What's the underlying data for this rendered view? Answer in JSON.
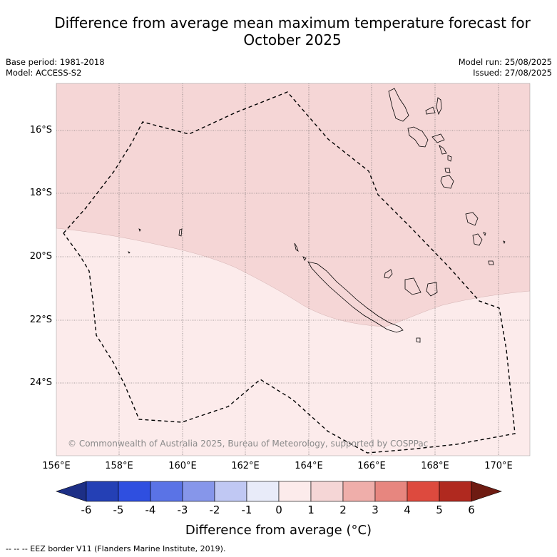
{
  "title_line1": "Difference from average mean maximum temperature forecast for",
  "title_line2": "October 2025",
  "base_period": "Base period: 1981-2018",
  "model": "Model: ACCESS-S2",
  "model_run": "Model run: 25/08/2025",
  "issued": "Issued: 27/08/2025",
  "map": {
    "lat_labels": [
      "16°S",
      "18°S",
      "20°S",
      "22°S",
      "24°S"
    ],
    "lon_labels": [
      "156°E",
      "158°E",
      "160°E",
      "162°E",
      "164°E",
      "166°E",
      "168°E",
      "170°E"
    ],
    "anomaly_categories": [
      {
        "range": "0 to 1 °C",
        "color": "#fcebeb"
      },
      {
        "range": "1 to 2 °C",
        "color": "#f5d6d6"
      }
    ],
    "copyright": "© Commonwealth of Australia 2025, Bureau of Meteorology, supported by COSPPac"
  },
  "colorbar": {
    "ticks": [
      "-6",
      "-5",
      "-4",
      "-3",
      "-2",
      "-1",
      "0",
      "1",
      "2",
      "3",
      "4",
      "5",
      "6"
    ],
    "colors": [
      "#1d2f86",
      "#2440b5",
      "#2f4fe0",
      "#5a73e6",
      "#8696ea",
      "#c0c8f3",
      "#e8ebf9",
      "#fcebeb",
      "#f5d6d6",
      "#efaeaa",
      "#e7867f",
      "#dd4a3e",
      "#b0291f",
      "#6e1b12"
    ],
    "label": "Difference from average (°C)"
  },
  "footnote": "--  --  -- EEZ border V11 (Flanders Marine Institute, 2019)."
}
